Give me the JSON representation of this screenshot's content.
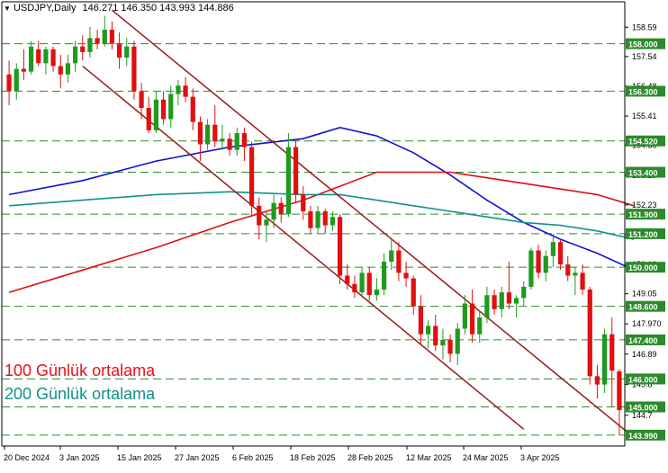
{
  "header": {
    "symbol": "USDJPY,Daily",
    "ohlc": "146.271 146.350 143.993 144.886"
  },
  "legend": [
    {
      "label": "100 Günlük ortalama",
      "color": "#e8101a"
    },
    {
      "label": "200 Günlük ortalama",
      "color": "#11918a"
    }
  ],
  "colors": {
    "bull": "#1f9a1f",
    "bear": "#e01010",
    "ma50": "#1010d0",
    "ma100": "#e01010",
    "ma200": "#11918a",
    "channel": "#9b1a1a",
    "level": "#2b8a2b",
    "axis": "#000000"
  },
  "chart_data": {
    "type": "candlestick",
    "title": "USDJPY,Daily",
    "ylim": [
      143.6,
      159.5
    ],
    "y_ticks": [
      "158.59",
      "157.54",
      "156.48",
      "155.41",
      "154.36",
      "153.29",
      "152.23",
      "151.17",
      "150.10",
      "149.05",
      "147.970",
      "146.89",
      "145.8",
      "144.7"
    ],
    "x_ticks": [
      "20 Dec 2024",
      "3 Jan 2025",
      "15 Jan 2025",
      "27 Jan 2025",
      "6 Feb 2025",
      "18 Feb 2025",
      "28 Feb 2025",
      "12 Mar 2025",
      "24 Mar 2025",
      "3 Apr 2025"
    ],
    "levels": [
      "158.000",
      "156.300",
      "154.520",
      "153.400",
      "151.900",
      "151.200",
      "150.000",
      "148.600",
      "147.400",
      "146.000",
      "145.000",
      "143.990"
    ],
    "candles": [
      {
        "o": 156.9,
        "h": 157.4,
        "l": 155.8,
        "c": 156.3
      },
      {
        "o": 156.3,
        "h": 157.3,
        "l": 156.0,
        "c": 157.1
      },
      {
        "o": 157.1,
        "h": 157.8,
        "l": 156.7,
        "c": 157.0
      },
      {
        "o": 157.0,
        "h": 158.1,
        "l": 156.9,
        "c": 157.9
      },
      {
        "o": 157.8,
        "h": 158.1,
        "l": 157.2,
        "c": 157.3
      },
      {
        "o": 157.3,
        "h": 157.9,
        "l": 156.9,
        "c": 157.8
      },
      {
        "o": 157.8,
        "h": 157.9,
        "l": 157.0,
        "c": 157.2
      },
      {
        "o": 157.2,
        "h": 157.6,
        "l": 156.4,
        "c": 156.9
      },
      {
        "o": 156.9,
        "h": 157.6,
        "l": 156.6,
        "c": 157.3
      },
      {
        "o": 157.3,
        "h": 158.1,
        "l": 157.0,
        "c": 157.9
      },
      {
        "o": 157.9,
        "h": 158.3,
        "l": 157.4,
        "c": 157.7
      },
      {
        "o": 157.7,
        "h": 158.6,
        "l": 157.5,
        "c": 158.2
      },
      {
        "o": 158.2,
        "h": 158.5,
        "l": 157.8,
        "c": 158.0
      },
      {
        "o": 158.0,
        "h": 159.0,
        "l": 157.9,
        "c": 158.5
      },
      {
        "o": 158.5,
        "h": 158.8,
        "l": 157.8,
        "c": 158.0
      },
      {
        "o": 158.0,
        "h": 158.4,
        "l": 157.1,
        "c": 157.5
      },
      {
        "o": 157.5,
        "h": 158.2,
        "l": 157.2,
        "c": 157.9
      },
      {
        "o": 157.9,
        "h": 158.1,
        "l": 156.0,
        "c": 156.3
      },
      {
        "o": 156.3,
        "h": 156.6,
        "l": 155.3,
        "c": 155.7
      },
      {
        "o": 155.7,
        "h": 156.1,
        "l": 154.8,
        "c": 154.9
      },
      {
        "o": 154.9,
        "h": 156.3,
        "l": 154.8,
        "c": 156.0
      },
      {
        "o": 156.0,
        "h": 156.3,
        "l": 155.1,
        "c": 155.3
      },
      {
        "o": 155.3,
        "h": 156.5,
        "l": 155.0,
        "c": 156.2
      },
      {
        "o": 156.2,
        "h": 156.7,
        "l": 155.8,
        "c": 156.5
      },
      {
        "o": 156.5,
        "h": 156.8,
        "l": 155.9,
        "c": 156.1
      },
      {
        "o": 156.1,
        "h": 156.4,
        "l": 154.9,
        "c": 155.2
      },
      {
        "o": 155.2,
        "h": 155.4,
        "l": 153.8,
        "c": 154.4
      },
      {
        "o": 154.4,
        "h": 155.3,
        "l": 154.2,
        "c": 155.1
      },
      {
        "o": 155.1,
        "h": 155.8,
        "l": 154.3,
        "c": 154.5
      },
      {
        "o": 154.5,
        "h": 155.1,
        "l": 154.2,
        "c": 154.6
      },
      {
        "o": 154.6,
        "h": 154.8,
        "l": 154.0,
        "c": 154.2
      },
      {
        "o": 154.2,
        "h": 155.0,
        "l": 154.0,
        "c": 154.8
      },
      {
        "o": 154.8,
        "h": 155.0,
        "l": 153.8,
        "c": 154.3
      },
      {
        "o": 154.3,
        "h": 154.5,
        "l": 151.8,
        "c": 152.2
      },
      {
        "o": 152.2,
        "h": 152.5,
        "l": 151.0,
        "c": 151.5
      },
      {
        "o": 151.5,
        "h": 152.0,
        "l": 150.9,
        "c": 151.7
      },
      {
        "o": 151.7,
        "h": 152.6,
        "l": 151.4,
        "c": 152.3
      },
      {
        "o": 152.3,
        "h": 152.5,
        "l": 151.6,
        "c": 151.9
      },
      {
        "o": 151.9,
        "h": 154.8,
        "l": 151.8,
        "c": 154.3
      },
      {
        "o": 154.3,
        "h": 154.6,
        "l": 152.3,
        "c": 152.6
      },
      {
        "o": 152.6,
        "h": 152.9,
        "l": 151.7,
        "c": 152.0
      },
      {
        "o": 152.0,
        "h": 152.2,
        "l": 151.2,
        "c": 151.4
      },
      {
        "o": 151.4,
        "h": 152.2,
        "l": 151.2,
        "c": 152.0
      },
      {
        "o": 152.0,
        "h": 152.1,
        "l": 151.2,
        "c": 151.5
      },
      {
        "o": 151.5,
        "h": 152.0,
        "l": 151.3,
        "c": 151.8
      },
      {
        "o": 151.8,
        "h": 151.9,
        "l": 149.4,
        "c": 149.7
      },
      {
        "o": 149.7,
        "h": 150.1,
        "l": 149.2,
        "c": 149.4
      },
      {
        "o": 149.4,
        "h": 149.7,
        "l": 148.9,
        "c": 149.1
      },
      {
        "o": 149.1,
        "h": 150.0,
        "l": 148.9,
        "c": 149.8
      },
      {
        "o": 149.8,
        "h": 150.0,
        "l": 148.8,
        "c": 149.0
      },
      {
        "o": 149.0,
        "h": 149.6,
        "l": 148.8,
        "c": 149.2
      },
      {
        "o": 149.2,
        "h": 150.5,
        "l": 149.0,
        "c": 150.2
      },
      {
        "o": 150.2,
        "h": 151.0,
        "l": 149.9,
        "c": 150.6
      },
      {
        "o": 150.6,
        "h": 150.9,
        "l": 149.5,
        "c": 149.8
      },
      {
        "o": 149.8,
        "h": 150.2,
        "l": 149.3,
        "c": 149.6
      },
      {
        "o": 149.6,
        "h": 149.7,
        "l": 148.3,
        "c": 148.6
      },
      {
        "o": 148.6,
        "h": 149.0,
        "l": 147.2,
        "c": 147.6
      },
      {
        "o": 147.6,
        "h": 148.1,
        "l": 147.1,
        "c": 147.9
      },
      {
        "o": 147.9,
        "h": 148.3,
        "l": 147.0,
        "c": 147.2
      },
      {
        "o": 147.2,
        "h": 147.8,
        "l": 146.7,
        "c": 147.4
      },
      {
        "o": 147.4,
        "h": 147.6,
        "l": 146.6,
        "c": 146.9
      },
      {
        "o": 146.9,
        "h": 148.0,
        "l": 146.5,
        "c": 147.8
      },
      {
        "o": 147.8,
        "h": 149.0,
        "l": 147.6,
        "c": 148.7
      },
      {
        "o": 148.7,
        "h": 149.2,
        "l": 147.3,
        "c": 147.6
      },
      {
        "o": 147.6,
        "h": 148.4,
        "l": 147.3,
        "c": 148.2
      },
      {
        "o": 148.2,
        "h": 149.3,
        "l": 148.0,
        "c": 149.0
      },
      {
        "o": 149.0,
        "h": 149.2,
        "l": 148.3,
        "c": 148.5
      },
      {
        "o": 148.5,
        "h": 149.3,
        "l": 148.2,
        "c": 149.1
      },
      {
        "o": 149.1,
        "h": 150.2,
        "l": 148.5,
        "c": 148.7
      },
      {
        "o": 148.7,
        "h": 149.0,
        "l": 148.2,
        "c": 148.9
      },
      {
        "o": 148.9,
        "h": 149.5,
        "l": 148.6,
        "c": 149.3
      },
      {
        "o": 149.3,
        "h": 150.7,
        "l": 149.2,
        "c": 150.6
      },
      {
        "o": 150.6,
        "h": 150.8,
        "l": 149.6,
        "c": 149.8
      },
      {
        "o": 149.8,
        "h": 150.6,
        "l": 149.5,
        "c": 150.4
      },
      {
        "o": 150.4,
        "h": 151.2,
        "l": 150.0,
        "c": 150.9
      },
      {
        "o": 150.9,
        "h": 151.0,
        "l": 149.9,
        "c": 150.1
      },
      {
        "o": 150.1,
        "h": 150.4,
        "l": 149.5,
        "c": 149.7
      },
      {
        "o": 149.7,
        "h": 150.0,
        "l": 149.0,
        "c": 149.8
      },
      {
        "o": 149.8,
        "h": 150.1,
        "l": 149.0,
        "c": 149.2
      },
      {
        "o": 149.2,
        "h": 149.3,
        "l": 145.8,
        "c": 146.1
      },
      {
        "o": 146.1,
        "h": 146.5,
        "l": 145.3,
        "c": 145.8
      },
      {
        "o": 145.8,
        "h": 147.8,
        "l": 145.5,
        "c": 147.6
      },
      {
        "o": 147.6,
        "h": 148.2,
        "l": 145.0,
        "c": 146.3
      },
      {
        "o": 146.271,
        "h": 146.35,
        "l": 143.993,
        "c": 144.886
      }
    ],
    "ma50": [
      [
        0,
        152.6
      ],
      [
        10,
        153.1
      ],
      [
        20,
        153.8
      ],
      [
        30,
        154.3
      ],
      [
        40,
        154.6
      ],
      [
        45,
        155.0
      ],
      [
        50,
        154.7
      ],
      [
        55,
        154.1
      ],
      [
        60,
        153.3
      ],
      [
        65,
        152.4
      ],
      [
        70,
        151.6
      ],
      [
        75,
        151.0
      ],
      [
        80,
        150.5
      ],
      [
        85,
        149.9
      ]
    ],
    "ma100": [
      [
        0,
        149.1
      ],
      [
        10,
        149.9
      ],
      [
        20,
        150.7
      ],
      [
        30,
        151.6
      ],
      [
        40,
        152.4
      ],
      [
        45,
        152.9
      ],
      [
        50,
        153.4
      ],
      [
        55,
        153.4
      ],
      [
        60,
        153.4
      ],
      [
        65,
        153.2
      ],
      [
        70,
        153.0
      ],
      [
        75,
        152.8
      ],
      [
        80,
        152.6
      ],
      [
        85,
        152.2
      ]
    ],
    "ma200": [
      [
        0,
        152.2
      ],
      [
        10,
        152.4
      ],
      [
        20,
        152.6
      ],
      [
        30,
        152.7
      ],
      [
        40,
        152.6
      ],
      [
        45,
        152.6
      ],
      [
        50,
        152.4
      ],
      [
        55,
        152.2
      ],
      [
        60,
        152.0
      ],
      [
        65,
        151.8
      ],
      [
        70,
        151.6
      ],
      [
        75,
        151.5
      ],
      [
        80,
        151.3
      ],
      [
        85,
        151.0
      ]
    ],
    "channel": {
      "upper": [
        [
          14,
          159.2
        ],
        [
          85,
          143.9
        ]
      ],
      "lower": [
        [
          10,
          157.2
        ],
        [
          70,
          144.2
        ]
      ]
    }
  }
}
